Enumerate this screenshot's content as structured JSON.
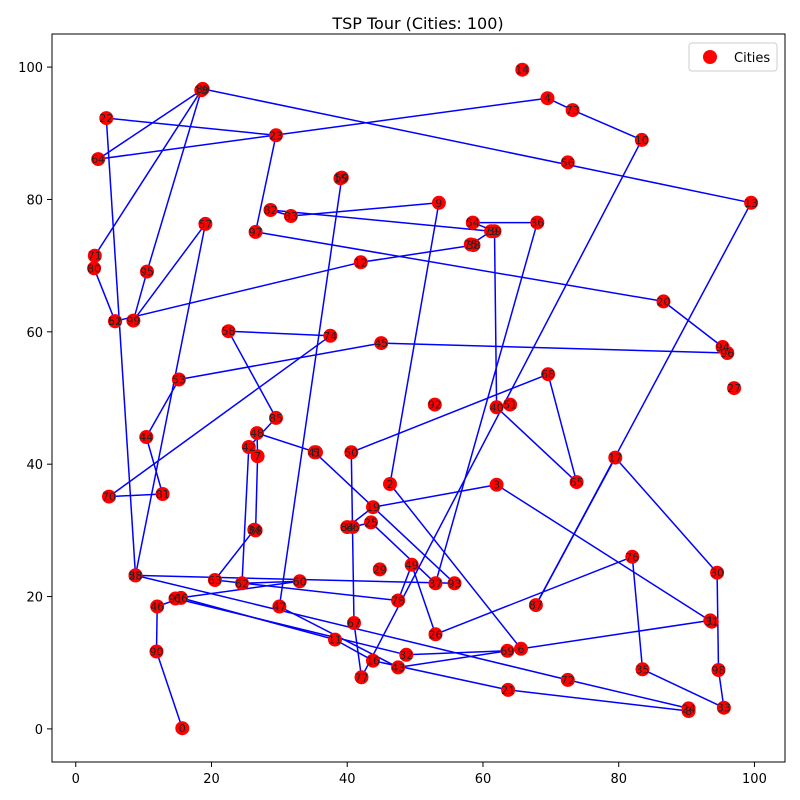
{
  "chart_data": {
    "type": "scatter",
    "title": "TSP Tour (Cities: 100)",
    "xlabel": "",
    "ylabel": "",
    "xlim": [
      -3.5,
      104.5
    ],
    "ylim": [
      -5,
      105
    ],
    "x_ticks": [
      0,
      20,
      40,
      60,
      80,
      100
    ],
    "y_ticks": [
      0,
      20,
      40,
      60,
      80,
      100
    ],
    "grid": false,
    "legend": {
      "placement": "top-right",
      "entries": [
        "Cities"
      ]
    },
    "colors": {
      "city_marker": "#ff0000",
      "tour_line": "#0000ff"
    },
    "series": [
      {
        "name": "Cities",
        "points": [
          {
            "label": "0",
            "x": 15.7,
            "y": 0.1
          },
          {
            "label": "1",
            "x": 93.5,
            "y": 16.4
          },
          {
            "label": "2",
            "x": 46.3,
            "y": 37.0
          },
          {
            "label": "3",
            "x": 62.0,
            "y": 36.9
          },
          {
            "label": "4",
            "x": 69.5,
            "y": 95.3
          },
          {
            "label": "5",
            "x": 35.4,
            "y": 41.8
          },
          {
            "label": "6",
            "x": 65.6,
            "y": 12.1
          },
          {
            "label": "7",
            "x": 26.8,
            "y": 41.2
          },
          {
            "label": "8",
            "x": 90.3,
            "y": 2.7
          },
          {
            "label": "9",
            "x": 53.5,
            "y": 79.5
          },
          {
            "label": "10",
            "x": 83.4,
            "y": 89.0
          },
          {
            "label": "11",
            "x": 38.2,
            "y": 13.5
          },
          {
            "label": "12",
            "x": 42.0,
            "y": 70.5
          },
          {
            "label": "13",
            "x": 99.5,
            "y": 79.5
          },
          {
            "label": "14",
            "x": 65.8,
            "y": 99.6
          },
          {
            "label": "15",
            "x": 39.0,
            "y": 83.2
          },
          {
            "label": "16",
            "x": 43.8,
            "y": 10.3
          },
          {
            "label": "17",
            "x": 79.5,
            "y": 41.0
          },
          {
            "label": "18",
            "x": 18.5,
            "y": 96.5
          },
          {
            "label": "19",
            "x": 43.8,
            "y": 33.5
          },
          {
            "label": "20",
            "x": 86.6,
            "y": 64.6
          },
          {
            "label": "21",
            "x": 63.7,
            "y": 5.9
          },
          {
            "label": "22",
            "x": 4.5,
            "y": 92.3
          },
          {
            "label": "23",
            "x": 29.5,
            "y": 89.7
          },
          {
            "label": "24",
            "x": 90.3,
            "y": 3.1
          },
          {
            "label": "25",
            "x": 43.5,
            "y": 31.2
          },
          {
            "label": "26",
            "x": 53.0,
            "y": 14.3
          },
          {
            "label": "27",
            "x": 97.0,
            "y": 51.5
          },
          {
            "label": "28",
            "x": 8.8,
            "y": 23.2
          },
          {
            "label": "29",
            "x": 44.8,
            "y": 24.1
          },
          {
            "label": "30",
            "x": 94.5,
            "y": 23.6
          },
          {
            "label": "31",
            "x": 93.7,
            "y": 16.2
          },
          {
            "label": "32",
            "x": 48.7,
            "y": 11.2
          },
          {
            "label": "33",
            "x": 95.5,
            "y": 3.2
          },
          {
            "label": "34",
            "x": 26.3,
            "y": 30.1
          },
          {
            "label": "35",
            "x": 83.5,
            "y": 9.0
          },
          {
            "label": "36",
            "x": 68.0,
            "y": 76.5
          },
          {
            "label": "37",
            "x": 53.0,
            "y": 22.0
          },
          {
            "label": "38",
            "x": 58.6,
            "y": 73.1
          },
          {
            "label": "39",
            "x": 61.7,
            "y": 75.2
          },
          {
            "label": "40",
            "x": 62.0,
            "y": 48.6
          },
          {
            "label": "41",
            "x": 35.2,
            "y": 41.8
          },
          {
            "label": "42",
            "x": 25.5,
            "y": 42.6
          },
          {
            "label": "43",
            "x": 47.5,
            "y": 9.3
          },
          {
            "label": "44",
            "x": 10.4,
            "y": 44.1
          },
          {
            "label": "45",
            "x": 45.0,
            "y": 58.3
          },
          {
            "label": "46",
            "x": 12.0,
            "y": 18.5
          },
          {
            "label": "47",
            "x": 30.0,
            "y": 18.5
          },
          {
            "label": "48",
            "x": 26.7,
            "y": 44.7
          },
          {
            "label": "49",
            "x": 49.5,
            "y": 24.8
          },
          {
            "label": "50",
            "x": 40.6,
            "y": 41.8
          },
          {
            "label": "51",
            "x": 64.0,
            "y": 49.0
          },
          {
            "label": "52",
            "x": 5.8,
            "y": 61.6
          },
          {
            "label": "53",
            "x": 15.2,
            "y": 52.8
          },
          {
            "label": "54",
            "x": 58.5,
            "y": 76.5
          },
          {
            "label": "55",
            "x": 8.8,
            "y": 23.2
          },
          {
            "label": "56",
            "x": 72.5,
            "y": 85.6
          },
          {
            "label": "57",
            "x": 19.1,
            "y": 76.3
          },
          {
            "label": "58",
            "x": 22.5,
            "y": 60.1
          },
          {
            "label": "59",
            "x": 39.2,
            "y": 83.3
          },
          {
            "label": "60",
            "x": 33.0,
            "y": 22.3
          },
          {
            "label": "61",
            "x": 5.8,
            "y": 61.6
          },
          {
            "label": "62",
            "x": 24.5,
            "y": 22.0
          },
          {
            "label": "63",
            "x": 20.5,
            "y": 22.5
          },
          {
            "label": "64",
            "x": 3.3,
            "y": 86.1
          },
          {
            "label": "65",
            "x": 73.8,
            "y": 37.3
          },
          {
            "label": "66",
            "x": 15.5,
            "y": 19.8
          },
          {
            "label": "67",
            "x": 41.0,
            "y": 16.0
          },
          {
            "label": "68",
            "x": 69.6,
            "y": 53.6
          },
          {
            "label": "69",
            "x": 63.6,
            "y": 11.8
          },
          {
            "label": "70",
            "x": 4.9,
            "y": 35.1
          },
          {
            "label": "71",
            "x": 2.8,
            "y": 71.5
          },
          {
            "label": "72",
            "x": 72.5,
            "y": 7.4
          },
          {
            "label": "73",
            "x": 73.2,
            "y": 93.5
          },
          {
            "label": "74",
            "x": 37.5,
            "y": 59.4
          },
          {
            "label": "75",
            "x": 58.2,
            "y": 73.2
          },
          {
            "label": "76",
            "x": 82.0,
            "y": 26.0
          },
          {
            "label": "77",
            "x": 42.1,
            "y": 7.8
          },
          {
            "label": "78",
            "x": 47.5,
            "y": 19.4
          },
          {
            "label": "79",
            "x": 61.2,
            "y": 75.2
          },
          {
            "label": "80",
            "x": 2.7,
            "y": 69.6
          },
          {
            "label": "81",
            "x": 12.8,
            "y": 35.5
          },
          {
            "label": "82",
            "x": 28.7,
            "y": 78.4
          },
          {
            "label": "83",
            "x": 31.7,
            "y": 77.5
          },
          {
            "label": "84",
            "x": 40.0,
            "y": 30.5
          },
          {
            "label": "85",
            "x": 29.5,
            "y": 47.0
          },
          {
            "label": "86",
            "x": 40.8,
            "y": 30.5
          },
          {
            "label": "87",
            "x": 67.8,
            "y": 18.7
          },
          {
            "label": "88",
            "x": 26.5,
            "y": 30.0
          },
          {
            "label": "89",
            "x": 18.7,
            "y": 96.7
          },
          {
            "label": "90",
            "x": 11.9,
            "y": 11.7
          },
          {
            "label": "91",
            "x": 14.7,
            "y": 19.7
          },
          {
            "label": "92",
            "x": 52.9,
            "y": 49.0
          },
          {
            "label": "93",
            "x": 55.8,
            "y": 22.0
          },
          {
            "label": "94",
            "x": 95.3,
            "y": 57.7
          },
          {
            "label": "95",
            "x": 10.5,
            "y": 69.1
          },
          {
            "label": "96",
            "x": 96.0,
            "y": 56.8
          },
          {
            "label": "97",
            "x": 26.5,
            "y": 75.1
          },
          {
            "label": "98",
            "x": 94.7,
            "y": 8.9
          },
          {
            "label": "99",
            "x": 8.5,
            "y": 61.7
          }
        ]
      }
    ]
  }
}
